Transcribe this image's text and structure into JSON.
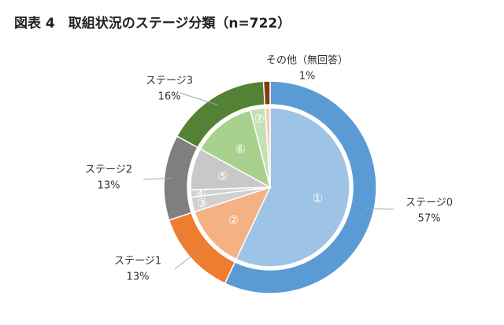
{
  "chart_data": {
    "type": "donut",
    "title": "図表 4　取組状況のステージ分類（n=722）",
    "rings": [
      {
        "categories": [
          "ステージ0",
          "ステージ1",
          "ステージ2",
          "ステージ3",
          "その他（無回答）"
        ],
        "values": [
          57,
          13,
          13,
          16,
          1
        ],
        "value_labels": [
          "57%",
          "13%",
          "13%",
          "16%",
          "1%"
        ],
        "colors": [
          "#5b9bd5",
          "#ed7d31",
          "#7f7f7f",
          "#548235",
          "#843c0c"
        ]
      },
      {
        "categories": [
          "①",
          "②",
          "③",
          "④",
          "⑤",
          "⑥",
          "⑦",
          null
        ],
        "values": [
          57,
          13,
          3,
          1.5,
          8.5,
          13,
          3,
          1
        ],
        "colors": [
          "#9dc3e6",
          "#f4b183",
          "#d0d0d0",
          "#d0d0d0",
          "#c8c8c8",
          "#a9d18e",
          "#c5e0b4",
          "#f8cbad"
        ]
      }
    ]
  }
}
